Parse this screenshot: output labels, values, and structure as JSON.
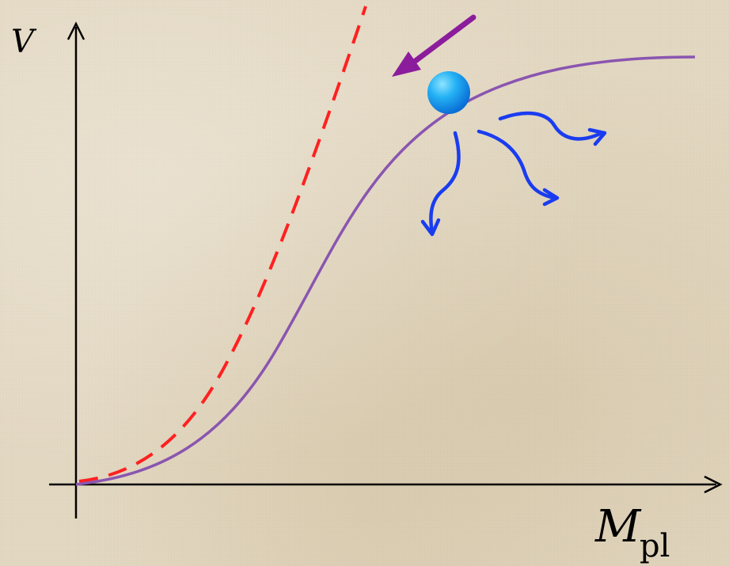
{
  "axes": {
    "y_label": "V",
    "x_label_main": "M",
    "x_label_sub": "pl"
  },
  "colors": {
    "axis": "#000000",
    "potential_curve": "#8a55b0",
    "dashed_curve": "#ff2020",
    "push_arrow": "#8b1d9c",
    "ball": "#1aa3f0",
    "scatter_arrows": "#1a3cf0"
  }
}
